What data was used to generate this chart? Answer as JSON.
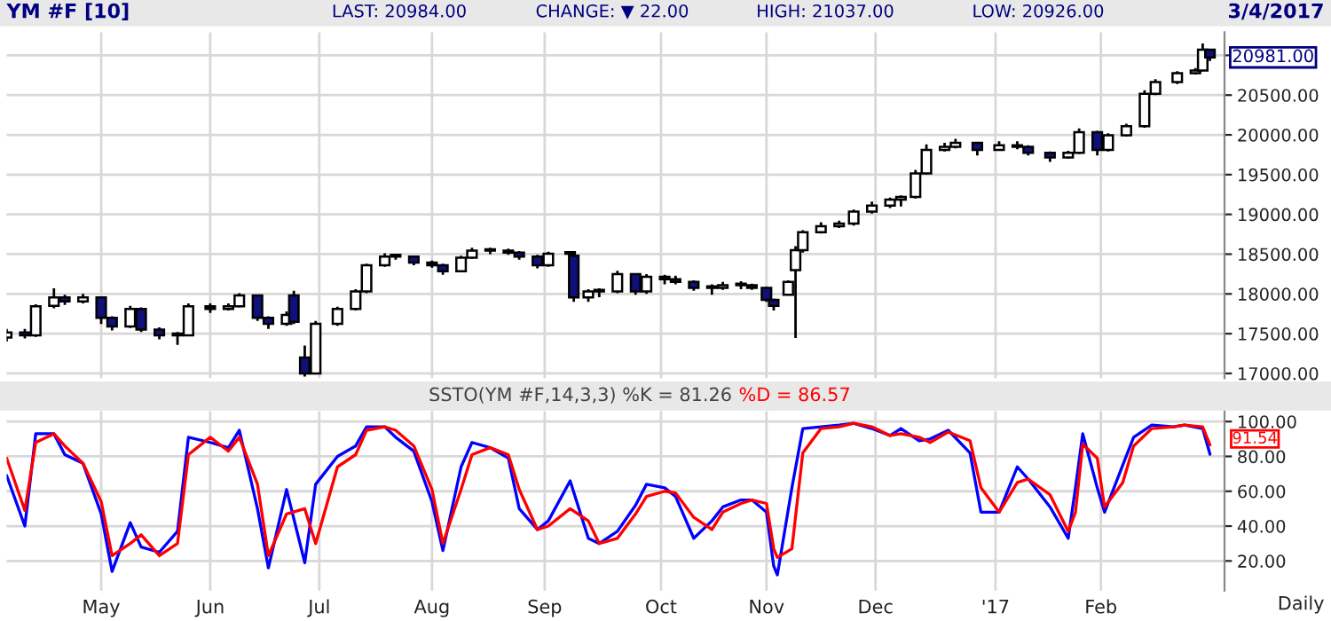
{
  "chart_data": [
    {
      "type": "candlestick",
      "title": "YM #F [10]",
      "annotations": [
        "LAST: 20984.00",
        "CHANGE: ▼ 22.00",
        "HIGH: 21037.00",
        "LOW: 20926.00",
        "3/4/2017",
        "20981.00"
      ],
      "x": [
        "2016-04-06",
        "2016-04-11",
        "2016-04-14",
        "2016-04-19",
        "2016-04-22",
        "2016-04-27",
        "2016-05-02",
        "2016-05-05",
        "2016-05-10",
        "2016-05-13",
        "2016-05-18",
        "2016-05-23",
        "2016-05-26",
        "2016-06-01",
        "2016-06-06",
        "2016-06-09",
        "2016-06-14",
        "2016-06-17",
        "2016-06-22",
        "2016-06-24",
        "2016-06-27",
        "2016-06-30",
        "2016-07-06",
        "2016-07-11",
        "2016-07-14",
        "2016-07-19",
        "2016-07-22",
        "2016-07-27",
        "2016-08-01",
        "2016-08-04",
        "2016-08-09",
        "2016-08-12",
        "2016-08-17",
        "2016-08-22",
        "2016-08-25",
        "2016-08-30",
        "2016-09-02",
        "2016-09-08",
        "2016-09-09",
        "2016-09-13",
        "2016-09-16",
        "2016-09-21",
        "2016-09-26",
        "2016-09-29",
        "2016-10-04",
        "2016-10-07",
        "2016-10-12",
        "2016-10-17",
        "2016-10-20",
        "2016-10-25",
        "2016-10-28",
        "2016-11-01",
        "2016-11-03",
        "2016-11-07",
        "2016-11-09",
        "2016-11-11",
        "2016-11-16",
        "2016-11-21",
        "2016-11-25",
        "2016-11-30",
        "2016-12-05",
        "2016-12-08",
        "2016-12-12",
        "2016-12-15",
        "2016-12-20",
        "2016-12-23",
        "2016-12-29",
        "2017-01-04",
        "2017-01-09",
        "2017-01-12",
        "2017-01-18",
        "2017-01-23",
        "2017-01-26",
        "2017-01-31",
        "2017-02-03",
        "2017-02-08",
        "2017-02-13",
        "2017-02-16",
        "2017-02-22",
        "2017-02-27",
        "2017-03-01",
        "2017-03-03"
      ],
      "ohlc": [
        [
          17450,
          17560,
          17400,
          17515
        ],
        [
          17515,
          17560,
          17440,
          17480
        ],
        [
          17480,
          17870,
          17460,
          17845
        ],
        [
          17850,
          18070,
          17820,
          17955
        ],
        [
          17955,
          17990,
          17860,
          17905
        ],
        [
          17905,
          18000,
          17880,
          17955
        ],
        [
          17955,
          17970,
          17620,
          17700
        ],
        [
          17700,
          17720,
          17540,
          17590
        ],
        [
          17590,
          17850,
          17570,
          17810
        ],
        [
          17810,
          17830,
          17520,
          17550
        ],
        [
          17550,
          17580,
          17430,
          17480
        ],
        [
          17480,
          17520,
          17360,
          17500
        ],
        [
          17480,
          17880,
          17470,
          17845
        ],
        [
          17845,
          17880,
          17760,
          17810
        ],
        [
          17810,
          17880,
          17790,
          17845
        ],
        [
          17845,
          18010,
          17830,
          17980
        ],
        [
          17980,
          17990,
          17660,
          17700
        ],
        [
          17700,
          17720,
          17560,
          17625
        ],
        [
          17625,
          17780,
          17600,
          17735
        ],
        [
          17980,
          18040,
          17620,
          17650
        ],
        [
          17200,
          17350,
          16960,
          17000
        ],
        [
          17000,
          17660,
          16990,
          17625
        ],
        [
          17625,
          17840,
          17600,
          17810
        ],
        [
          17810,
          18060,
          17790,
          18030
        ],
        [
          18030,
          18380,
          18010,
          18360
        ],
        [
          18360,
          18510,
          18340,
          18470
        ],
        [
          18470,
          18500,
          18430,
          18490
        ],
        [
          18470,
          18480,
          18360,
          18395
        ],
        [
          18395,
          18420,
          18330,
          18360
        ],
        [
          18360,
          18380,
          18240,
          18285
        ],
        [
          18285,
          18480,
          18270,
          18455
        ],
        [
          18455,
          18580,
          18440,
          18545
        ],
        [
          18545,
          18580,
          18500,
          18560
        ],
        [
          18545,
          18570,
          18490,
          18520
        ],
        [
          18520,
          18540,
          18430,
          18470
        ],
        [
          18470,
          18490,
          18320,
          18360
        ],
        [
          18360,
          18530,
          18340,
          18505
        ],
        [
          18505,
          18540,
          18470,
          18525
        ],
        [
          18480,
          18500,
          17900,
          17955
        ],
        [
          17955,
          18060,
          17900,
          18030
        ],
        [
          18030,
          18070,
          17960,
          18050
        ],
        [
          18030,
          18290,
          18010,
          18250
        ],
        [
          18250,
          18260,
          17990,
          18030
        ],
        [
          18030,
          18250,
          18000,
          18215
        ],
        [
          18215,
          18240,
          18120,
          18185
        ],
        [
          18185,
          18230,
          18120,
          18150
        ],
        [
          18150,
          18170,
          18040,
          18075
        ],
        [
          18075,
          18120,
          17990,
          18095
        ],
        [
          18075,
          18150,
          18050,
          18110
        ],
        [
          18110,
          18160,
          18060,
          18130
        ],
        [
          18110,
          18130,
          18050,
          18075
        ],
        [
          18075,
          18090,
          17900,
          17925
        ],
        [
          17925,
          17940,
          17790,
          17850
        ],
        [
          17990,
          18170,
          17980,
          18150
        ],
        [
          18300,
          18600,
          17445,
          18550
        ],
        [
          18550,
          18800,
          18520,
          18775
        ],
        [
          18775,
          18900,
          18760,
          18850
        ],
        [
          18850,
          18920,
          18830,
          18885
        ],
        [
          18885,
          19060,
          18860,
          19035
        ],
        [
          19035,
          19160,
          19010,
          19110
        ],
        [
          19110,
          19210,
          19080,
          19185
        ],
        [
          19185,
          19240,
          19100,
          19220
        ],
        [
          19220,
          19560,
          19200,
          19515
        ],
        [
          19515,
          19880,
          19500,
          19810
        ],
        [
          19810,
          19900,
          19790,
          19850
        ],
        [
          19850,
          19950,
          19830,
          19900
        ],
        [
          19900,
          19910,
          19740,
          19810
        ],
        [
          19810,
          19920,
          19800,
          19870
        ],
        [
          19870,
          19920,
          19820,
          19850
        ],
        [
          19850,
          19870,
          19740,
          19775
        ],
        [
          19775,
          19790,
          19660,
          19715
        ],
        [
          19715,
          19800,
          19700,
          19775
        ],
        [
          19775,
          20080,
          19760,
          20035
        ],
        [
          20035,
          20050,
          19740,
          19810
        ],
        [
          19810,
          20020,
          19790,
          19995
        ],
        [
          19995,
          20140,
          19980,
          20110
        ],
        [
          20110,
          20560,
          20090,
          20515
        ],
        [
          20515,
          20700,
          20500,
          20665
        ],
        [
          20665,
          20800,
          20640,
          20775
        ],
        [
          20775,
          20840,
          20760,
          20810
        ],
        [
          20810,
          21150,
          20800,
          21070
        ],
        [
          21070,
          21080,
          20930,
          20975
        ]
      ],
      "colors": [
        "#ffffff",
        "#10107a",
        "#ffffff",
        "#ffffff",
        "#10107a",
        "#ffffff",
        "#10107a",
        "#10107a",
        "#ffffff",
        "#10107a",
        "#10107a",
        "#ffffff",
        "#ffffff",
        "#10107a",
        "#ffffff",
        "#ffffff",
        "#10107a",
        "#10107a",
        "#ffffff",
        "#10107a",
        "#10107a",
        "#ffffff",
        "#ffffff",
        "#ffffff",
        "#ffffff",
        "#ffffff",
        "#ffffff",
        "#10107a",
        "#10107a",
        "#10107a",
        "#ffffff",
        "#ffffff",
        "#ffffff",
        "#10107a",
        "#10107a",
        "#10107a",
        "#ffffff",
        "#ffffff",
        "#10107a",
        "#ffffff",
        "#ffffff",
        "#ffffff",
        "#10107a",
        "#ffffff",
        "#10107a",
        "#10107a",
        "#10107a",
        "#ffffff",
        "#ffffff",
        "#ffffff",
        "#10107a",
        "#10107a",
        "#10107a",
        "#ffffff",
        "#ffffff",
        "#ffffff",
        "#ffffff",
        "#ffffff",
        "#ffffff",
        "#ffffff",
        "#ffffff",
        "#ffffff",
        "#ffffff",
        "#ffffff",
        "#ffffff",
        "#ffffff",
        "#10107a",
        "#ffffff",
        "#10107a",
        "#10107a",
        "#10107a",
        "#ffffff",
        "#ffffff",
        "#10107a",
        "#ffffff",
        "#ffffff",
        "#ffffff",
        "#ffffff",
        "#ffffff",
        "#ffffff",
        "#ffffff",
        "#10107a"
      ],
      "xlim": [
        "2016-04-06",
        "2017-03-07"
      ],
      "xticks": [
        {
          "value": "2016-05-02",
          "label": null
        },
        {
          "value": "2016-06-01",
          "label": null
        },
        {
          "value": "2016-07-01",
          "label": null
        },
        {
          "value": "2016-08-01",
          "label": null
        },
        {
          "value": "2016-09-01",
          "label": null
        },
        {
          "value": "2016-10-03",
          "label": null
        },
        {
          "value": "2016-11-01",
          "label": null
        },
        {
          "value": "2016-12-01",
          "label": null
        },
        {
          "value": "2017-01-03",
          "label": null
        },
        {
          "value": "2017-02-01",
          "label": null
        }
      ],
      "ylim": [
        16940,
        21290
      ],
      "yticks": [
        {
          "value": 17000,
          "label": "17000.00"
        },
        {
          "value": 17500,
          "label": "17500.00"
        },
        {
          "value": 18000,
          "label": "18000.00"
        },
        {
          "value": 18500,
          "label": "18500.00"
        },
        {
          "value": 19000,
          "label": "19000.00"
        },
        {
          "value": 19500,
          "label": "19500.00"
        },
        {
          "value": 20000,
          "label": "20000.00"
        },
        {
          "value": 20500,
          "label": "20500.00"
        },
        {
          "value": 21000,
          "label": null
        }
      ],
      "grid": true,
      "tick_labels": "y"
    },
    {
      "type": "line",
      "title": "SSTO(YM #F,14,3,3) %K = 81.26",
      "subtitle": "%D = 86.57",
      "annotations": [
        "91.54",
        "Daily"
      ],
      "x": [
        "2016-04-06",
        "2016-04-11",
        "2016-04-14",
        "2016-04-19",
        "2016-04-22",
        "2016-04-27",
        "2016-05-02",
        "2016-05-05",
        "2016-05-10",
        "2016-05-13",
        "2016-05-18",
        "2016-05-23",
        "2016-05-26",
        "2016-06-01",
        "2016-06-06",
        "2016-06-09",
        "2016-06-14",
        "2016-06-17",
        "2016-06-22",
        "2016-06-27",
        "2016-06-30",
        "2016-07-06",
        "2016-07-11",
        "2016-07-14",
        "2016-07-19",
        "2016-07-22",
        "2016-07-27",
        "2016-08-01",
        "2016-08-04",
        "2016-08-09",
        "2016-08-12",
        "2016-08-17",
        "2016-08-22",
        "2016-08-25",
        "2016-08-30",
        "2016-09-02",
        "2016-09-08",
        "2016-09-13",
        "2016-09-16",
        "2016-09-21",
        "2016-09-26",
        "2016-09-29",
        "2016-10-04",
        "2016-10-07",
        "2016-10-12",
        "2016-10-17",
        "2016-10-20",
        "2016-10-25",
        "2016-10-28",
        "2016-11-01",
        "2016-11-03",
        "2016-11-04",
        "2016-11-08",
        "2016-11-11",
        "2016-11-16",
        "2016-11-21",
        "2016-11-25",
        "2016-11-30",
        "2016-12-05",
        "2016-12-08",
        "2016-12-13",
        "2016-12-16",
        "2016-12-21",
        "2016-12-27",
        "2016-12-30",
        "2017-01-04",
        "2017-01-09",
        "2017-01-12",
        "2017-01-18",
        "2017-01-23",
        "2017-01-25",
        "2017-01-27",
        "2017-01-31",
        "2017-02-02",
        "2017-02-07",
        "2017-02-10",
        "2017-02-15",
        "2017-02-21",
        "2017-02-24",
        "2017-03-01",
        "2017-03-03"
      ],
      "series": [
        {
          "color": "#0000ff",
          "values": [
            69,
            40,
            93,
            93,
            81,
            76,
            47,
            14,
            42,
            28,
            25,
            37,
            91,
            88,
            85,
            95,
            50,
            16,
            61,
            19,
            64,
            80,
            86,
            97,
            97,
            91,
            83,
            54,
            26,
            74,
            88,
            85,
            79,
            50,
            38,
            43,
            66,
            33,
            30,
            37,
            52,
            64,
            62,
            57,
            33,
            43,
            51,
            55,
            55,
            48,
            17,
            12,
            62,
            96,
            97,
            98,
            99,
            96,
            92,
            96,
            89,
            90,
            95,
            82,
            48,
            48,
            74,
            67,
            51,
            33,
            62,
            93,
            62,
            48,
            75,
            91,
            98,
            97,
            98,
            96,
            81.26
          ]
        },
        {
          "color": "#ff0000",
          "values": [
            79,
            49,
            88,
            93,
            86,
            76,
            54,
            23,
            30,
            35,
            23,
            30,
            81,
            91,
            83,
            91,
            64,
            23,
            47,
            50,
            30,
            74,
            81,
            95,
            97,
            95,
            86,
            61,
            30,
            61,
            81,
            85,
            81,
            61,
            38,
            40,
            50,
            43,
            30,
            33,
            47,
            57,
            60,
            59,
            45,
            38,
            48,
            53,
            55,
            53,
            27,
            22,
            27,
            82,
            96,
            97,
            99,
            97,
            92,
            93,
            91,
            88,
            94,
            89,
            62,
            48,
            65,
            67,
            58,
            37,
            48,
            87,
            79,
            51,
            65,
            86,
            96,
            97,
            98,
            97,
            86.57
          ]
        }
      ],
      "xlim": [
        "2016-04-06",
        "2017-03-07"
      ],
      "xticks": [
        {
          "value": "2016-05-02",
          "label": "May"
        },
        {
          "value": "2016-06-01",
          "label": "Jun"
        },
        {
          "value": "2016-07-01",
          "label": "Jul"
        },
        {
          "value": "2016-08-01",
          "label": "Aug"
        },
        {
          "value": "2016-09-01",
          "label": "Sep"
        },
        {
          "value": "2016-10-03",
          "label": "Oct"
        },
        {
          "value": "2016-11-01",
          "label": "Nov"
        },
        {
          "value": "2016-12-01",
          "label": "Dec"
        },
        {
          "value": "2017-01-03",
          "label": "'17"
        },
        {
          "value": "2017-02-01",
          "label": "Feb"
        }
      ],
      "ylim": [
        3,
        106
      ],
      "yticks": [
        {
          "value": 20,
          "label": "20.00"
        },
        {
          "value": 40,
          "label": "40.00"
        },
        {
          "value": 60,
          "label": "60.00"
        },
        {
          "value": 80,
          "label": "80.00"
        },
        {
          "value": 100,
          "label": "100.00"
        }
      ],
      "grid": true
    }
  ]
}
